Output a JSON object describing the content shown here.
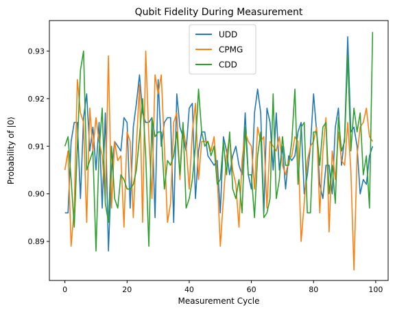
{
  "chart_data": {
    "type": "line",
    "title": "Qubit Fidelity During Measurement",
    "xlabel": "Measurement Cycle",
    "ylabel": "Probability of |0⟩",
    "xlim": [
      -5,
      104
    ],
    "ylim": [
      0.8818,
      0.9364
    ],
    "xticks": [
      0,
      20,
      40,
      60,
      80,
      100
    ],
    "yticks": [
      0.89,
      0.9,
      0.91,
      0.92,
      0.93
    ],
    "xtick_labels": [
      "0",
      "20",
      "40",
      "60",
      "80",
      "100"
    ],
    "ytick_labels": [
      "0.89",
      "0.90",
      "0.91",
      "0.92",
      "0.93"
    ],
    "legend_position": "top-center",
    "grid": false,
    "series": [
      {
        "name": "UDD",
        "color": "#1f77b4",
        "values": [
          0.896,
          0.896,
          0.911,
          0.915,
          0.915,
          0.899,
          0.916,
          0.921,
          0.909,
          0.914,
          0.905,
          0.915,
          0.897,
          0.917,
          0.888,
          0.905,
          0.911,
          0.91,
          0.909,
          0.916,
          0.915,
          0.897,
          0.914,
          0.919,
          0.925,
          0.917,
          0.915,
          0.915,
          0.916,
          0.895,
          0.924,
          0.91,
          0.915,
          0.916,
          0.916,
          0.894,
          0.921,
          0.914,
          0.912,
          0.909,
          0.918,
          0.919,
          0.899,
          0.909,
          0.913,
          0.913,
          0.908,
          0.907,
          0.906,
          0.907,
          0.896,
          0.912,
          0.909,
          0.904,
          0.908,
          0.91,
          0.906,
          0.904,
          0.917,
          0.904,
          0.901,
          0.917,
          0.922,
          0.917,
          0.896,
          0.918,
          0.915,
          0.905,
          0.917,
          0.905,
          0.91,
          0.901,
          0.908,
          0.907,
          0.908,
          0.913,
          0.915,
          0.9,
          0.904,
          0.91,
          0.921,
          0.913,
          0.902,
          0.899,
          0.906,
          0.906,
          0.9,
          0.914,
          0.918,
          0.906,
          0.912,
          0.933,
          0.913,
          0.914,
          0.91,
          0.9,
          0.903,
          0.902,
          0.908,
          0.91
        ]
      },
      {
        "name": "CPMG",
        "color": "#ff7f0e",
        "values": [
          0.905,
          0.909,
          0.889,
          0.897,
          0.924,
          0.917,
          0.915,
          0.894,
          0.918,
          0.909,
          0.916,
          0.911,
          0.908,
          0.899,
          0.929,
          0.897,
          0.911,
          0.907,
          0.908,
          0.893,
          0.913,
          0.911,
          0.895,
          0.91,
          0.923,
          0.894,
          0.93,
          0.912,
          0.899,
          0.925,
          0.921,
          0.925,
          0.91,
          0.894,
          0.898,
          0.915,
          0.917,
          0.903,
          0.914,
          0.91,
          0.901,
          0.913,
          0.919,
          0.903,
          0.911,
          0.911,
          0.911,
          0.909,
          0.912,
          0.904,
          0.889,
          0.899,
          0.908,
          0.912,
          0.905,
          0.902,
          0.893,
          0.907,
          0.913,
          0.911,
          0.91,
          0.901,
          0.914,
          0.911,
          0.912,
          0.897,
          0.911,
          0.91,
          0.909,
          0.912,
          0.906,
          0.904,
          0.907,
          0.908,
          0.912,
          0.911,
          0.89,
          0.898,
          0.907,
          0.91,
          0.911,
          0.914,
          0.896,
          0.909,
          0.916,
          0.892,
          0.909,
          0.903,
          0.913,
          0.907,
          0.906,
          0.915,
          0.905,
          0.884,
          0.908,
          0.914,
          0.915,
          0.918,
          0.912,
          0.911
        ]
      },
      {
        "name": "CDD",
        "color": "#2ca02c",
        "values": [
          0.91,
          0.912,
          0.903,
          0.893,
          0.91,
          0.926,
          0.93,
          0.905,
          0.907,
          0.909,
          0.888,
          0.909,
          0.918,
          0.898,
          0.894,
          0.91,
          0.899,
          0.897,
          0.904,
          0.903,
          0.901,
          0.901,
          0.902,
          0.905,
          0.912,
          0.92,
          0.908,
          0.889,
          0.916,
          0.912,
          0.913,
          0.913,
          0.901,
          0.907,
          0.906,
          0.908,
          0.913,
          0.904,
          0.915,
          0.897,
          0.899,
          0.903,
          0.91,
          0.922,
          0.913,
          0.91,
          0.911,
          0.908,
          0.91,
          0.902,
          0.903,
          0.911,
          0.904,
          0.913,
          0.901,
          0.899,
          0.903,
          0.896,
          0.914,
          0.904,
          0.904,
          0.895,
          0.908,
          0.913,
          0.895,
          0.896,
          0.899,
          0.921,
          0.899,
          0.903,
          0.912,
          0.906,
          0.906,
          0.911,
          0.922,
          0.902,
          0.914,
          0.915,
          0.896,
          0.896,
          0.913,
          0.913,
          0.906,
          0.914,
          0.915,
          0.9,
          0.906,
          0.898,
          0.916,
          0.909,
          0.911,
          0.929,
          0.909,
          0.918,
          0.913,
          0.917,
          0.904,
          0.908,
          0.897,
          0.934
        ]
      }
    ]
  }
}
